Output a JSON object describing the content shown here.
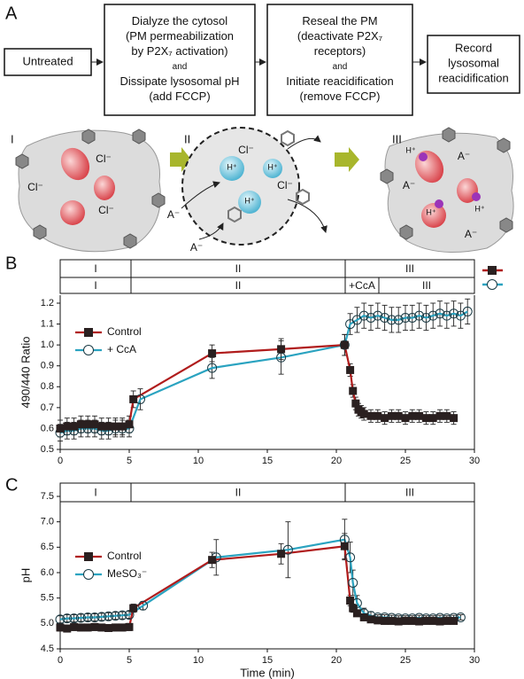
{
  "panel_a": {
    "label": "A",
    "steps": [
      {
        "lines": [
          "Untreated"
        ]
      },
      {
        "lines": [
          "Dialyze the cytosol",
          "(PM permeabilization",
          "by P2X₇ activation)",
          "and",
          "Dissipate lysosomal pH",
          "(add FCCP)"
        ]
      },
      {
        "lines": [
          "Reseal the PM",
          "(deactivate P2X₇",
          "receptors)",
          "and",
          "Initiate reacidification",
          "(remove FCCP)"
        ]
      },
      {
        "lines": [
          "Record",
          "lysosomal",
          "reacidification"
        ]
      }
    ],
    "stages": [
      {
        "label": "I",
        "texts": [
          "Cl⁻",
          "Cl⁻",
          "Cl⁻"
        ]
      },
      {
        "label": "II",
        "texts": [
          "Cl⁻",
          "Cl⁻",
          "A⁻",
          "A⁻",
          "H⁺",
          "H⁺",
          "H⁺"
        ]
      },
      {
        "label": "III",
        "texts": [
          "H⁺",
          "A⁻",
          "A⁻",
          "H⁺",
          "H⁺",
          "A⁻"
        ]
      }
    ]
  },
  "chart_data": [
    {
      "type": "line",
      "panel": "B",
      "ylabel": "490/440 Ratio",
      "xlim": [
        0,
        30
      ],
      "xticks": [
        0,
        5,
        10,
        15,
        20,
        25,
        30
      ],
      "ylim": [
        0.5,
        1.2
      ],
      "yticks": [
        0.5,
        0.6,
        0.7,
        0.8,
        0.9,
        {
          "value": 1,
          "label": "1.0"
        },
        1.1,
        1.2
      ],
      "phases": [
        [
          "I",
          "II",
          "III"
        ],
        [
          "I",
          "II",
          "+CcA",
          "III"
        ]
      ],
      "legend": "upper left",
      "series": [
        {
          "name": "Control",
          "color": "#b01c1c",
          "marker": "square",
          "x": [
            0,
            0.5,
            1,
            1.5,
            2,
            2.5,
            3,
            3.5,
            4,
            4.5,
            5,
            5.3,
            11,
            16,
            20.6,
            21,
            21.2,
            21.4,
            21.6,
            21.8,
            22,
            22.5,
            23,
            23.5,
            24,
            24.5,
            25,
            25.5,
            26,
            26.5,
            27,
            27.5,
            28,
            28.5
          ],
          "values": [
            0.6,
            0.61,
            0.61,
            0.62,
            0.62,
            0.62,
            0.61,
            0.61,
            0.61,
            0.61,
            0.62,
            0.74,
            0.96,
            0.98,
            1.0,
            0.88,
            0.78,
            0.72,
            0.69,
            0.68,
            0.67,
            0.66,
            0.66,
            0.65,
            0.66,
            0.66,
            0.65,
            0.66,
            0.66,
            0.65,
            0.65,
            0.66,
            0.66,
            0.65
          ],
          "errors": [
            0.04,
            0.04,
            0.04,
            0.04,
            0.04,
            0.04,
            0.04,
            0.04,
            0.04,
            0.04,
            0.04,
            0.04,
            0.04,
            0.05,
            0.05,
            0.03,
            0.03,
            0.03,
            0.03,
            0.03,
            0.03,
            0.03,
            0.03,
            0.03,
            0.03,
            0.03,
            0.03,
            0.03,
            0.03,
            0.03,
            0.03,
            0.03,
            0.03,
            0.03
          ]
        },
        {
          "name": "+ CcA",
          "color": "#2aa3c0",
          "marker": "circle",
          "x": [
            0,
            0.5,
            1,
            1.5,
            2,
            2.5,
            3,
            3.5,
            4,
            4.5,
            5,
            5.8,
            11,
            16,
            20.6,
            21,
            21.5,
            22,
            22.5,
            23,
            23.5,
            24,
            24.5,
            25,
            25.5,
            26,
            26.5,
            27,
            27.5,
            28,
            28.5,
            29,
            29.5
          ],
          "values": [
            0.58,
            0.59,
            0.59,
            0.6,
            0.6,
            0.6,
            0.59,
            0.59,
            0.6,
            0.6,
            0.6,
            0.74,
            0.89,
            0.94,
            1.0,
            1.1,
            1.12,
            1.14,
            1.13,
            1.14,
            1.13,
            1.12,
            1.12,
            1.13,
            1.13,
            1.14,
            1.13,
            1.14,
            1.15,
            1.14,
            1.15,
            1.14,
            1.16
          ],
          "errors": [
            0.04,
            0.04,
            0.04,
            0.04,
            0.04,
            0.04,
            0.04,
            0.04,
            0.04,
            0.04,
            0.04,
            0.05,
            0.05,
            0.08,
            0.05,
            0.05,
            0.06,
            0.06,
            0.06,
            0.06,
            0.06,
            0.06,
            0.06,
            0.06,
            0.06,
            0.06,
            0.06,
            0.06,
            0.06,
            0.06,
            0.06,
            0.06,
            0.06
          ]
        }
      ]
    },
    {
      "type": "line",
      "panel": "C",
      "ylabel": "pH",
      "xlabel": "Time (min)",
      "xlim": [
        0,
        30
      ],
      "xticks": [
        0,
        5,
        10,
        15,
        20,
        25,
        30
      ],
      "ylim": [
        4.5,
        7.5
      ],
      "yticks": [
        4.5,
        {
          "value": 5,
          "label": "5.0"
        },
        5.5,
        {
          "value": 6,
          "label": "6.0"
        },
        6.5,
        {
          "value": 7,
          "label": "7.0"
        },
        7.5
      ],
      "phases": [
        [
          "I",
          "II",
          "III"
        ]
      ],
      "legend": "upper left",
      "series": [
        {
          "name": "Control",
          "color": "#b01c1c",
          "marker": "square",
          "x": [
            0,
            0.5,
            1,
            1.5,
            2,
            2.5,
            3,
            3.5,
            4,
            4.5,
            5,
            5.3,
            11,
            16,
            20.6,
            21,
            21.2,
            21.5,
            22,
            22.5,
            23,
            23.5,
            24,
            24.5,
            25,
            25.5,
            26,
            26.5,
            27,
            27.5,
            28,
            28.5
          ],
          "values": [
            4.92,
            4.9,
            4.93,
            4.92,
            4.92,
            4.93,
            4.92,
            4.91,
            4.92,
            4.92,
            4.93,
            5.3,
            6.25,
            6.37,
            6.52,
            5.45,
            5.3,
            5.2,
            5.12,
            5.08,
            5.06,
            5.05,
            5.05,
            5.04,
            5.05,
            5.05,
            5.04,
            5.05,
            5.05,
            5.04,
            5.05,
            5.05
          ],
          "errors": [
            0.07,
            0.07,
            0.07,
            0.07,
            0.07,
            0.07,
            0.07,
            0.07,
            0.07,
            0.07,
            0.07,
            0.08,
            0.15,
            0.2,
            0.25,
            0.1,
            0.08,
            0.06,
            0.05,
            0.05,
            0.04,
            0.04,
            0.04,
            0.04,
            0.04,
            0.04,
            0.04,
            0.04,
            0.04,
            0.04,
            0.04,
            0.04
          ]
        },
        {
          "name": "MeSO₃⁻",
          "color": "#2aa3c0",
          "marker": "circle",
          "x": [
            0,
            0.5,
            1,
            1.5,
            2,
            2.5,
            3,
            3.5,
            4,
            4.5,
            5,
            6,
            11.3,
            16.5,
            20.6,
            21,
            21.2,
            21.5,
            22,
            22.5,
            23,
            23.5,
            24,
            24.5,
            25,
            25.5,
            26,
            26.5,
            27,
            27.5,
            28,
            28.5,
            29
          ],
          "values": [
            5.08,
            5.1,
            5.1,
            5.11,
            5.12,
            5.12,
            5.13,
            5.14,
            5.15,
            5.16,
            5.17,
            5.35,
            6.3,
            6.45,
            6.65,
            6.3,
            5.8,
            5.4,
            5.2,
            5.15,
            5.12,
            5.12,
            5.11,
            5.1,
            5.1,
            5.1,
            5.11,
            5.1,
            5.1,
            5.11,
            5.1,
            5.11,
            5.12
          ],
          "errors": [
            0.07,
            0.07,
            0.07,
            0.07,
            0.07,
            0.07,
            0.07,
            0.07,
            0.07,
            0.07,
            0.07,
            0.08,
            0.35,
            0.55,
            0.4,
            0.3,
            0.25,
            0.15,
            0.1,
            0.08,
            0.05,
            0.05,
            0.05,
            0.05,
            0.05,
            0.05,
            0.05,
            0.05,
            0.05,
            0.05,
            0.05,
            0.05,
            0.05
          ]
        }
      ]
    }
  ]
}
